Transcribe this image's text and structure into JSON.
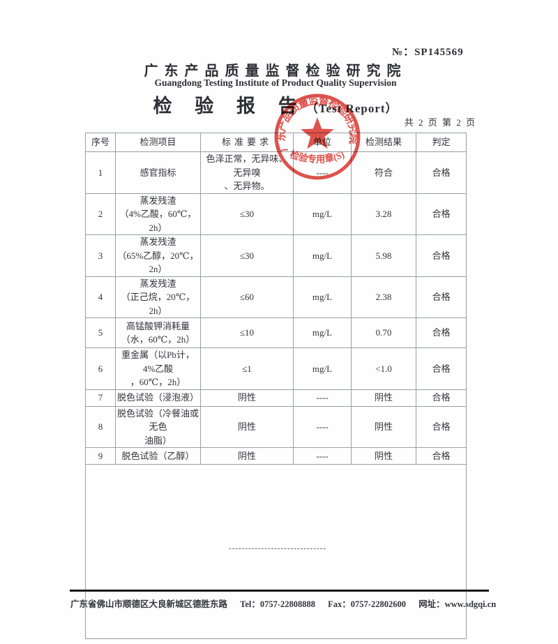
{
  "report": {
    "serial_label": "№：",
    "serial": "SP145569",
    "institute_cn": "广东产品质量监督检验研究院",
    "institute_en": "Guangdong Testing Institute of Product Quality Supervision",
    "title_cn": "检 验 报 告",
    "title_en": "（Test Report）",
    "page_info": "共 2 页 第 2 页"
  },
  "stamp": {
    "ring_text": "广东产品质量监督检验研究院",
    "bottom_text": "检验专用章(S)",
    "star_icon": "red-star",
    "color": "#d8342c"
  },
  "table": {
    "headers": [
      "序号",
      "检测项目",
      "标准要求",
      "单位",
      "检测结果",
      "判定"
    ],
    "rows": [
      {
        "no": "1",
        "item_lines": [
          "感官指标"
        ],
        "requirement_lines": [
          "色泽正常，无异味、无异嗅",
          "、无异物。"
        ],
        "unit": "----",
        "result": "符合",
        "verdict": "合格"
      },
      {
        "no": "2",
        "item_lines": [
          "蒸发残渣",
          "（4%乙酸，60℃，2h）"
        ],
        "requirement_lines": [
          "≤30"
        ],
        "unit": "mg/L",
        "result": "3.28",
        "verdict": "合格"
      },
      {
        "no": "3",
        "item_lines": [
          "蒸发残渣",
          "（65%乙醇，20℃，2n）"
        ],
        "requirement_lines": [
          "≤30"
        ],
        "unit": "mg/L",
        "result": "5.98",
        "verdict": "合格"
      },
      {
        "no": "4",
        "item_lines": [
          "蒸发残渣",
          "（正己烷，20℃，2h）"
        ],
        "requirement_lines": [
          "≤60"
        ],
        "unit": "mg/L",
        "result": "2.38",
        "verdict": "合格"
      },
      {
        "no": "5",
        "item_lines": [
          "高锰酸钾消耗量",
          "（水，60℃，2h）"
        ],
        "requirement_lines": [
          "≤10"
        ],
        "unit": "mg/L",
        "result": "0.70",
        "verdict": "合格"
      },
      {
        "no": "6",
        "item_lines": [
          "重金属（以Pb计，4%乙酸",
          "，60℃，2h）"
        ],
        "requirement_lines": [
          "≤1"
        ],
        "unit": "mg/L",
        "result": "<1.0",
        "verdict": "合格"
      },
      {
        "no": "7",
        "item_lines": [
          "脱色试验（浸泡液）"
        ],
        "requirement_lines": [
          "阴性"
        ],
        "unit": "----",
        "result": "阴性",
        "verdict": "合格"
      },
      {
        "no": "8",
        "item_lines": [
          "脱色试验（冷餐油或无色",
          "油脂）"
        ],
        "requirement_lines": [
          "阴性"
        ],
        "unit": "----",
        "result": "阴性",
        "verdict": "合格"
      },
      {
        "no": "9",
        "item_lines": [
          "脱色试验（乙醇）"
        ],
        "requirement_lines": [
          "阴性"
        ],
        "unit": "----",
        "result": "阴性",
        "verdict": "合格"
      }
    ],
    "empty_note": "------------------------------"
  },
  "footer": {
    "address": "广东省佛山市顺德区大良新城区德胜东路",
    "tel": "Tel：0757-22808888",
    "fax": "Fax：0757-22802600",
    "web": "网址：www.sdgqi.cn"
  },
  "colors": {
    "stamp_red": "#d8342c",
    "table_border": "#989ea6",
    "ink": "#2e2e36"
  }
}
